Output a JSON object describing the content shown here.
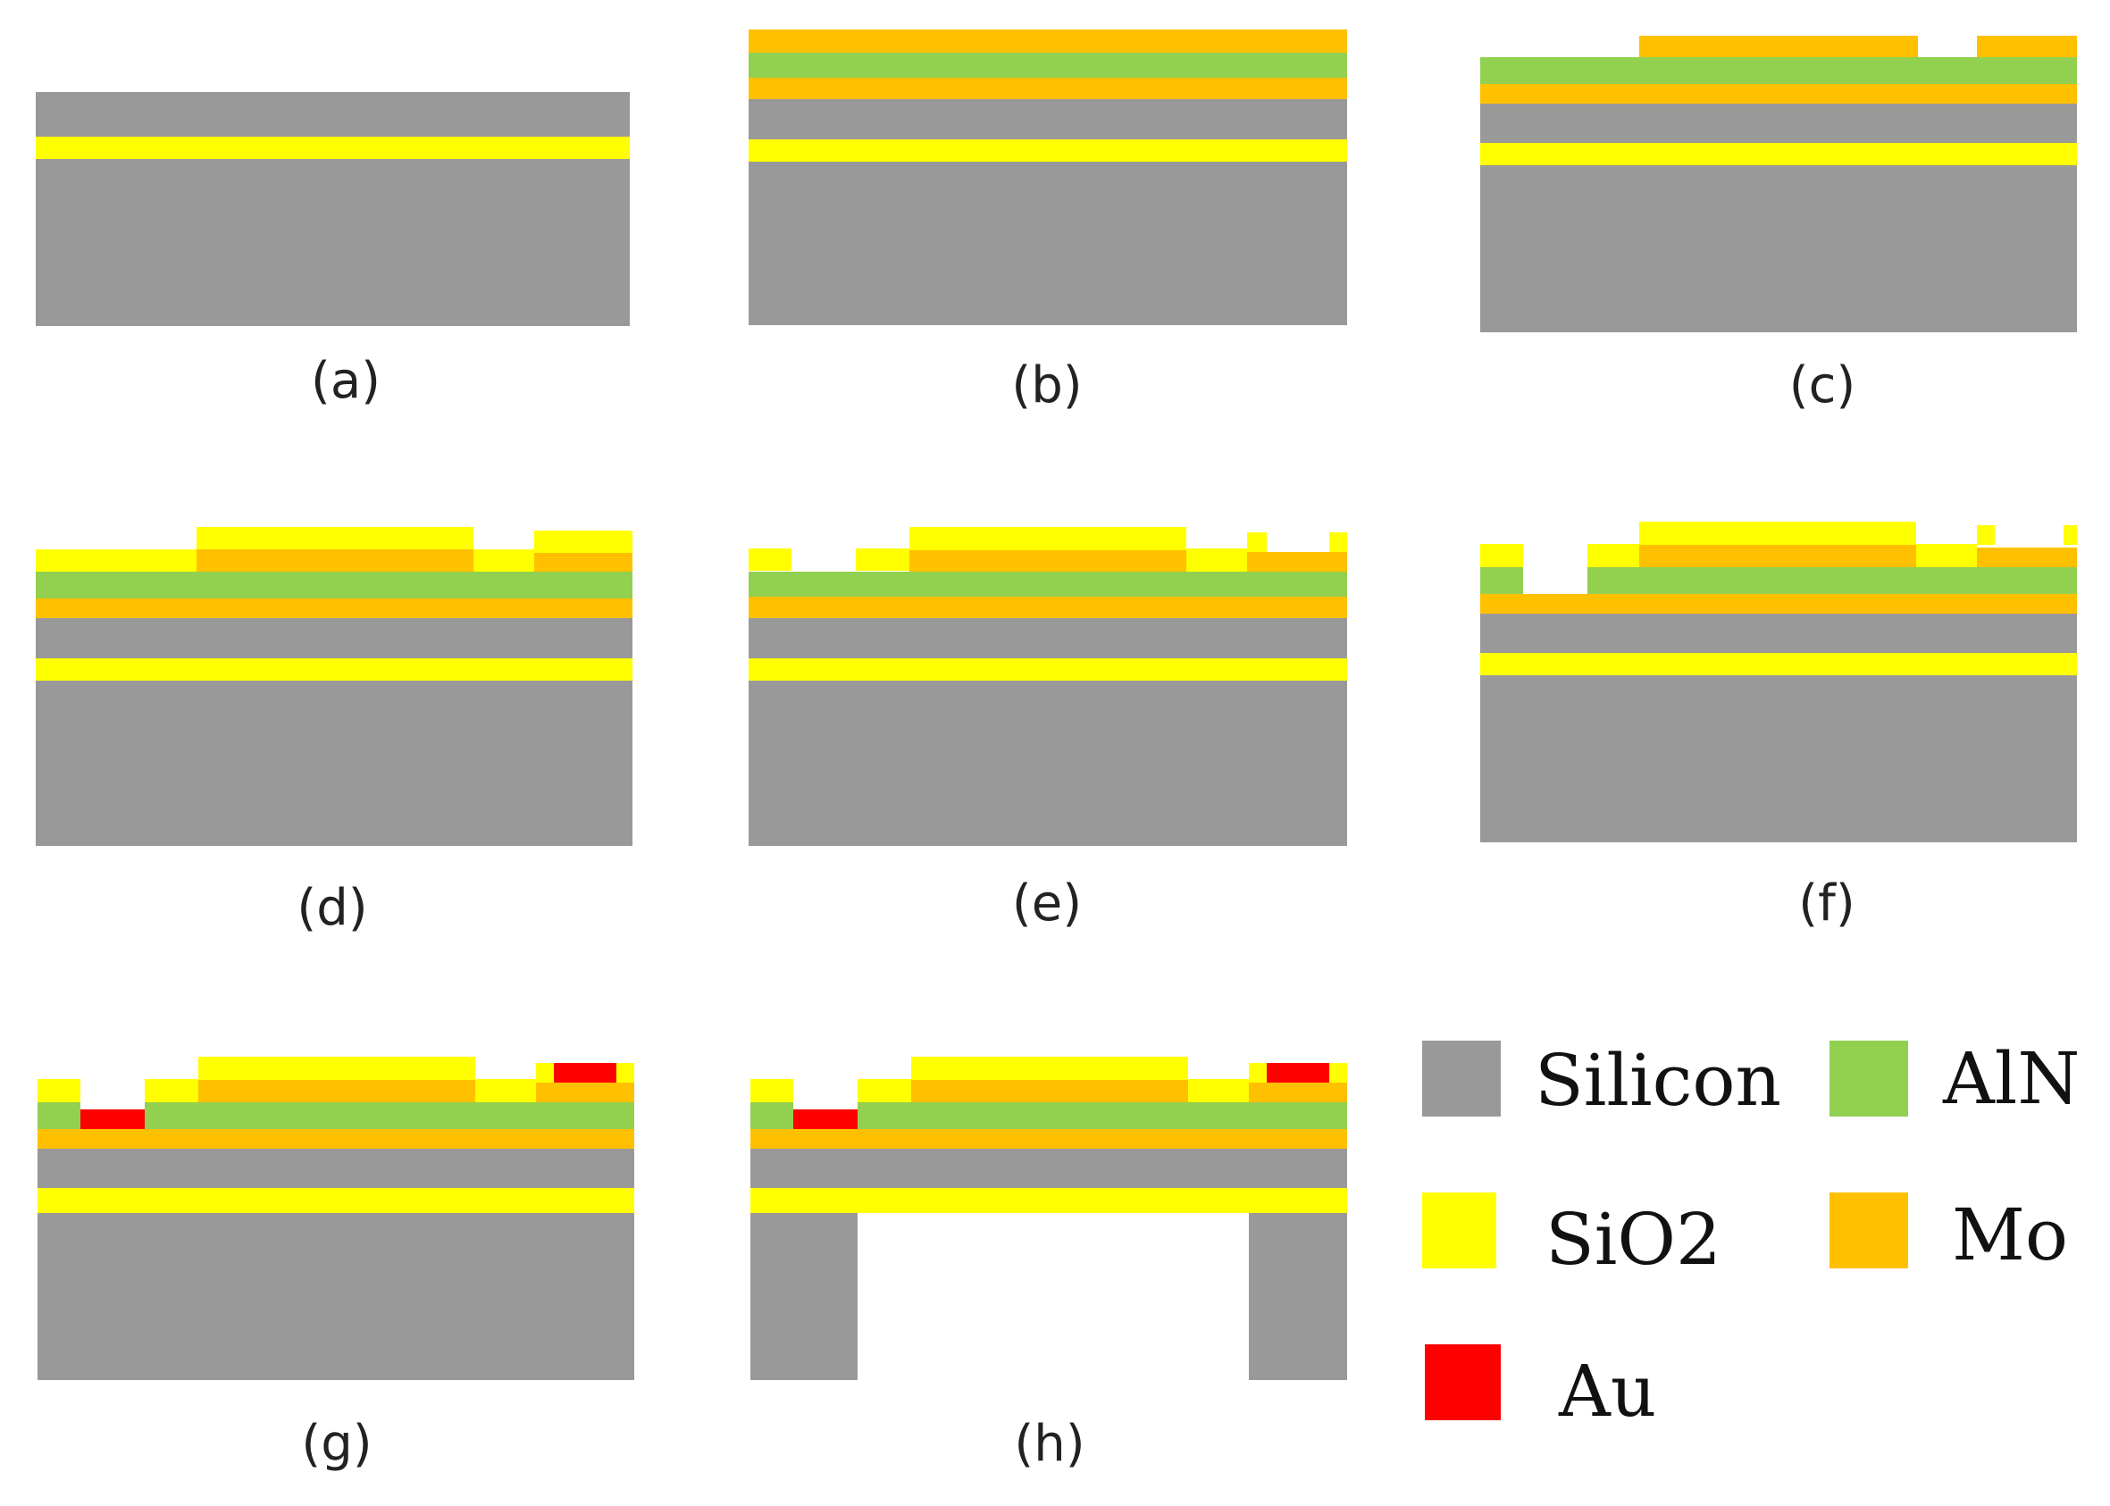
{
  "materials": {
    "silicon": {
      "name": "Silicon",
      "color": "#999999"
    },
    "aln": {
      "name": "AlN",
      "color": "#92d050"
    },
    "sio2": {
      "name": "SiO2",
      "color": "#ffff00"
    },
    "mo": {
      "name": "Mo",
      "color": "#ffc000"
    },
    "au": {
      "name": "Au",
      "color": "#ff0000"
    }
  },
  "steps": [
    {
      "id": "a",
      "label": "(a)"
    },
    {
      "id": "b",
      "label": "(b)"
    },
    {
      "id": "c",
      "label": "(c)"
    },
    {
      "id": "d",
      "label": "(d)"
    },
    {
      "id": "e",
      "label": "(e)"
    },
    {
      "id": "f",
      "label": "(f)"
    },
    {
      "id": "g",
      "label": "(g)"
    },
    {
      "id": "h",
      "label": "(h)"
    }
  ],
  "legend_order": [
    "silicon",
    "aln",
    "sio2",
    "mo",
    "au"
  ]
}
